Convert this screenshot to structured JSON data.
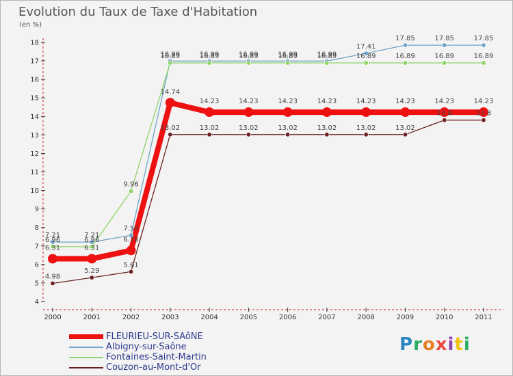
{
  "chart_data": {
    "type": "line",
    "title": "Evolution du Taux de Taxe d'Habitation",
    "ylabel": "(en %)",
    "x": [
      "2000",
      "2001",
      "2002",
      "2003",
      "2004",
      "2005",
      "2006",
      "2007",
      "2008",
      "2009",
      "2010",
      "2011"
    ],
    "ylim": [
      4,
      18
    ],
    "yticks": [
      4,
      5,
      6,
      7,
      8,
      9,
      10,
      11,
      12,
      13,
      14,
      15,
      16,
      17,
      18
    ],
    "grid": false,
    "legend_placement": "bottom-left",
    "series": [
      {
        "name": "Albigny-sur-Saône",
        "color": "#6fa3c7",
        "values": [
          7.21,
          7.21,
          7.58,
          16.99,
          16.99,
          16.99,
          16.99,
          16.99,
          17.41,
          17.85,
          17.85,
          17.85
        ],
        "labels": [
          "7.21",
          "7.21",
          "7.58",
          "16.99",
          "16.99",
          "16.99",
          "16.99",
          "16.99",
          "17.41",
          "17.85",
          "17.85",
          "17.85"
        ]
      },
      {
        "name": "Fontaines-Saint-Martin",
        "color": "#8ed468",
        "values": [
          6.96,
          6.96,
          9.96,
          16.89,
          16.89,
          16.89,
          16.89,
          16.89,
          16.89,
          16.89,
          16.89,
          16.89
        ],
        "labels": [
          "6.96",
          "6.96",
          "9.96",
          "16.89",
          "16.89",
          "16.89",
          "16.89",
          "16.89",
          "16.89",
          "16.89",
          "16.89",
          "16.89"
        ]
      },
      {
        "name": "Couzon-au-Mont-d'Or",
        "color": "#6b1f1f",
        "values": [
          4.98,
          5.29,
          5.61,
          13.02,
          13.02,
          13.02,
          13.02,
          13.02,
          13.02,
          13.02,
          13.8,
          13.8
        ],
        "labels": [
          "4.98",
          "5.29",
          "5.61",
          "13.02",
          "13.02",
          "13.02",
          "13.02",
          "13.02",
          "13.02",
          "13.02",
          "13.8",
          "13.8"
        ]
      },
      {
        "name": "FLEURIEU-SUR-SAôNE",
        "color": "#ee1111",
        "values": [
          6.31,
          6.31,
          6.76,
          14.74,
          14.23,
          14.23,
          14.23,
          14.23,
          14.23,
          14.23,
          14.23,
          14.23
        ],
        "labels": [
          "6.31",
          "6.31",
          "6.76",
          "14.74",
          "14.23",
          "14.23",
          "14.23",
          "14.23",
          "14.23",
          "14.23",
          "14.23",
          "14.23"
        ]
      }
    ],
    "legend": [
      {
        "name": "FLEURIEU-SUR-SAôNE",
        "color": "#ee1111",
        "thick": true
      },
      {
        "name": "Albigny-sur-Saône",
        "color": "#6fa3c7",
        "thick": false
      },
      {
        "name": "Fontaines-Saint-Martin",
        "color": "#8ed468",
        "thick": false
      },
      {
        "name": "Couzon-au-Mont-d'Or",
        "color": "#6b1f1f",
        "thick": false
      }
    ]
  },
  "logo": {
    "letters": [
      "P",
      "r",
      "o",
      "x",
      "i",
      "t",
      "i"
    ]
  }
}
